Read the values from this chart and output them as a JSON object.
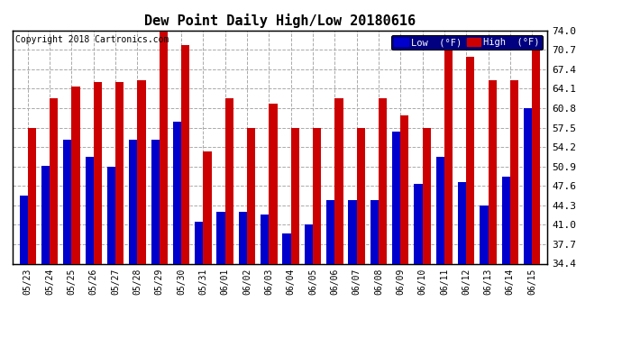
{
  "title": "Dew Point Daily High/Low 20180616",
  "copyright": "Copyright 2018 Cartronics.com",
  "ylabel_right_ticks": [
    34.4,
    37.7,
    41.0,
    44.3,
    47.6,
    50.9,
    54.2,
    57.5,
    60.8,
    64.1,
    67.4,
    70.7,
    74.0
  ],
  "dates": [
    "05/23",
    "05/24",
    "05/25",
    "05/26",
    "05/27",
    "05/28",
    "05/29",
    "05/30",
    "05/31",
    "06/01",
    "06/02",
    "06/03",
    "06/04",
    "06/05",
    "06/06",
    "06/07",
    "06/08",
    "06/09",
    "06/10",
    "06/11",
    "06/12",
    "06/13",
    "06/14",
    "06/15"
  ],
  "low": [
    46.0,
    51.0,
    55.5,
    52.5,
    50.8,
    55.5,
    55.5,
    58.5,
    41.5,
    43.2,
    43.2,
    42.8,
    39.5,
    41.0,
    45.2,
    45.2,
    45.2,
    56.8,
    48.0,
    52.5,
    48.2,
    44.2,
    49.2,
    60.8
  ],
  "high": [
    57.5,
    62.5,
    64.5,
    65.2,
    65.2,
    65.5,
    75.2,
    71.5,
    53.5,
    62.5,
    57.5,
    61.5,
    57.5,
    57.5,
    62.5,
    57.5,
    62.5,
    59.5,
    57.5,
    71.0,
    69.5,
    65.5,
    65.5,
    72.5
  ],
  "low_color": "#0000cc",
  "high_color": "#cc0000",
  "bg_color": "#ffffff",
  "plot_bg_color": "#ffffff",
  "grid_color": "#aaaaaa",
  "bar_width": 0.38,
  "ylim_min": 34.4,
  "ylim_max": 74.0,
  "legend_low_label": "Low  (°F)",
  "legend_high_label": "High  (°F)"
}
